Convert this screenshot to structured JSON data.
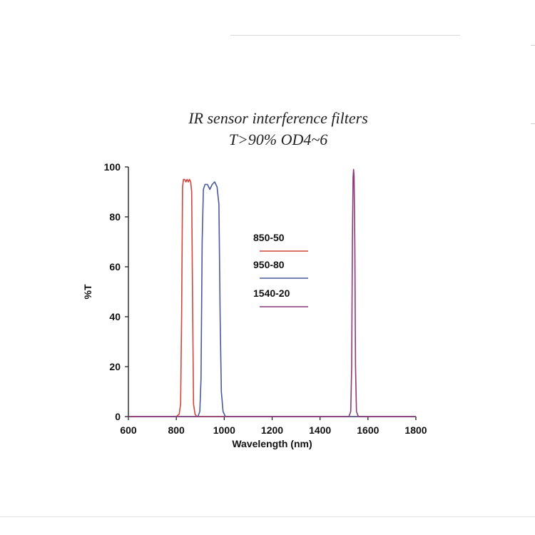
{
  "chart_data": {
    "type": "line",
    "title": "IR sensor interference filters",
    "subtitle": "T>90%  OD4~6",
    "xlabel": "Wavelength (nm)",
    "ylabel": "%T",
    "xlim": [
      600,
      1800
    ],
    "ylim": [
      0,
      100
    ],
    "x_ticks": [
      600,
      800,
      1000,
      1200,
      1400,
      1600,
      1800
    ],
    "y_ticks": [
      0,
      20,
      40,
      60,
      80,
      100
    ],
    "grid": false,
    "legend_position": "center",
    "series": [
      {
        "name": "850-50",
        "color": "#d2453c",
        "x": [
          600,
          800,
          812,
          818,
          822,
          826,
          830,
          835,
          840,
          845,
          850,
          855,
          860,
          864,
          868,
          872,
          878,
          885,
          1800
        ],
        "y": [
          0,
          0,
          1,
          5,
          40,
          92,
          95,
          95,
          94,
          95,
          94,
          95,
          94,
          90,
          45,
          5,
          1,
          0,
          0
        ]
      },
      {
        "name": "950-80",
        "color": "#4a5a9a",
        "x": [
          600,
          890,
          898,
          903,
          908,
          913,
          920,
          930,
          940,
          950,
          960,
          970,
          978,
          983,
          988,
          995,
          1005,
          1800
        ],
        "y": [
          0,
          0,
          2,
          15,
          70,
          91,
          93,
          93,
          91,
          93,
          94,
          92,
          85,
          40,
          10,
          2,
          0,
          0
        ]
      },
      {
        "name": "1540-20",
        "color": "#8a3a7a",
        "x": [
          600,
          1520,
          1528,
          1532,
          1535,
          1538,
          1540,
          1542,
          1545,
          1548,
          1552,
          1560,
          1800
        ],
        "y": [
          0,
          0,
          2,
          20,
          70,
          96,
          99,
          96,
          70,
          20,
          2,
          0,
          0
        ]
      }
    ]
  }
}
